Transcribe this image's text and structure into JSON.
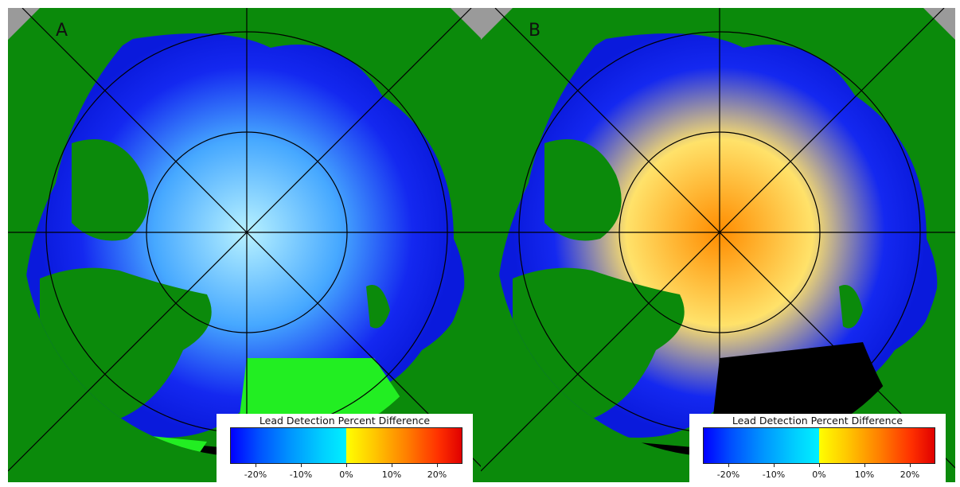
{
  "panels": [
    {
      "letter": "A",
      "legend_title": "Lead Detection Percent Difference",
      "legend_ticks": [
        "-20%",
        "-10%",
        "0%",
        "10%",
        "20%"
      ],
      "center_color": "#b8f2ff",
      "mid_color": "#46a8ff",
      "sea_color": "#1428f0"
    },
    {
      "letter": "B",
      "legend_title": "Lead Detection Percent Difference",
      "legend_ticks": [
        "-20%",
        "-10%",
        "0%",
        "10%",
        "20%"
      ],
      "center_color": "#ff8c00",
      "mid_color": "#ffe26a",
      "sea_color": "#1428f0"
    }
  ],
  "colors": {
    "land": "#0b8a0b",
    "ocean_out_of_range": "#000000",
    "corner": "#9a9a9a",
    "graticule": "#000000"
  }
}
